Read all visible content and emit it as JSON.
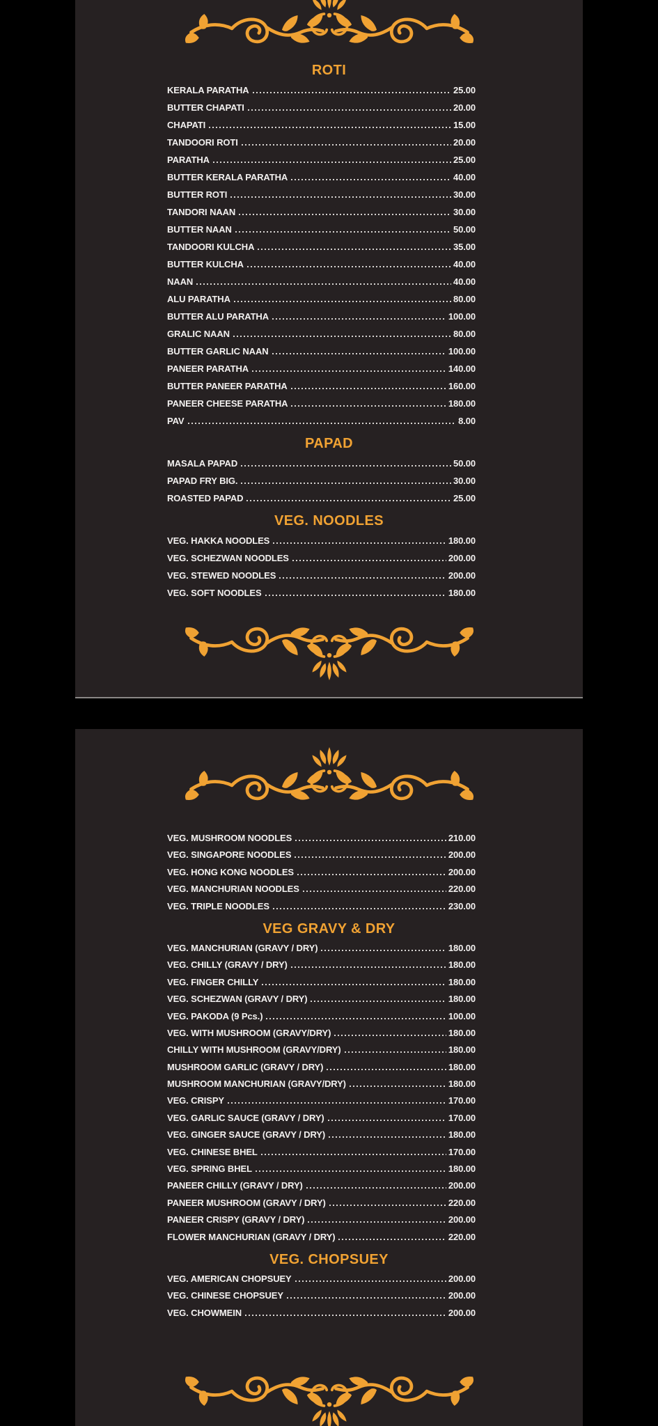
{
  "theme": {
    "orange": "#f0a233",
    "page_bg": "#262122",
    "canvas_bg": "#000000",
    "text": "#f3f1f0",
    "dots": "#d8d5d3"
  },
  "ornament": "floral-flourish-divider",
  "pages": [
    {
      "name": "menu-page-1",
      "sections": [
        {
          "title": "ROTI",
          "items": [
            {
              "name": "KERALA PARATHA",
              "price": "25.00"
            },
            {
              "name": "BUTTER CHAPATI",
              "price": "20.00"
            },
            {
              "name": "CHAPATI",
              "price": "15.00"
            },
            {
              "name": "TANDOORI ROTI",
              "price": "20.00"
            },
            {
              "name": "PARATHA",
              "price": "25.00"
            },
            {
              "name": "BUTTER KERALA PARATHA",
              "price": "40.00"
            },
            {
              "name": "BUTTER ROTI",
              "price": "30.00"
            },
            {
              "name": "TANDORI NAAN",
              "price": "30.00"
            },
            {
              "name": "BUTTER NAAN",
              "price": "50.00"
            },
            {
              "name": "TANDOORI KULCHA",
              "price": "35.00"
            },
            {
              "name": "BUTTER KULCHA",
              "price": "40.00"
            },
            {
              "name": "NAAN",
              "price": "40.00"
            },
            {
              "name": "ALU PARATHA",
              "price": "80.00"
            },
            {
              "name": "BUTTER ALU PARATHA",
              "price": "100.00"
            },
            {
              "name": "GRALIC NAAN",
              "price": "80.00"
            },
            {
              "name": "BUTTER GARLIC NAAN",
              "price": "100.00"
            },
            {
              "name": "PANEER PARATHA",
              "price": "140.00"
            },
            {
              "name": "BUTTER PANEER PARATHA",
              "price": "160.00"
            },
            {
              "name": "PANEER CHEESE PARATHA",
              "price": "180.00"
            },
            {
              "name": "PAV",
              "price": "8.00"
            }
          ]
        },
        {
          "title": "PAPAD",
          "items": [
            {
              "name": "MASALA PAPAD",
              "price": "50.00"
            },
            {
              "name": "PAPAD FRY BIG.",
              "price": "30.00"
            },
            {
              "name": "ROASTED PAPAD",
              "price": "25.00"
            }
          ]
        },
        {
          "title": "VEG. NOODLES",
          "items": [
            {
              "name": "VEG. HAKKA NOODLES",
              "price": "180.00"
            },
            {
              "name": "VEG. SCHEZWAN NOODLES",
              "price": "200.00"
            },
            {
              "name": "VEG. STEWED NOODLES",
              "price": "200.00"
            },
            {
              "name": "VEG. SOFT NOODLES",
              "price": "180.00"
            }
          ]
        }
      ]
    },
    {
      "name": "menu-page-2",
      "sections": [
        {
          "title": null,
          "items": [
            {
              "name": "VEG. MUSHROOM NOODLES",
              "price": "210.00"
            },
            {
              "name": "VEG. SINGAPORE NOODLES",
              "price": "200.00"
            },
            {
              "name": "VEG. HONG KONG NOODLES",
              "price": "200.00"
            },
            {
              "name": "VEG. MANCHURIAN NOODLES",
              "price": "220.00"
            },
            {
              "name": "VEG. TRIPLE NOODLES",
              "price": "230.00"
            }
          ]
        },
        {
          "title": "VEG GRAVY & DRY",
          "items": [
            {
              "name": "VEG. MANCHURIAN (GRAVY / DRY)",
              "price": "180.00"
            },
            {
              "name": "VEG. CHILLY (GRAVY / DRY)",
              "price": "180.00"
            },
            {
              "name": "VEG. FINGER CHILLY",
              "price": "180.00"
            },
            {
              "name": "VEG. SCHEZWAN (GRAVY / DRY)",
              "price": "180.00"
            },
            {
              "name": "VEG. PAKODA (9 Pcs.)",
              "price": "100.00"
            },
            {
              "name": "VEG. WITH MUSHROOM (GRAVY/DRY)",
              "price": "180.00"
            },
            {
              "name": "CHILLY WITH MUSHROOM (GRAVY/DRY)",
              "price": "180.00"
            },
            {
              "name": "MUSHROOM GARLIC (GRAVY / DRY)",
              "price": "180.00"
            },
            {
              "name": "MUSHROOM MANCHURIAN (GRAVY/DRY)",
              "price": "180.00"
            },
            {
              "name": "VEG. CRISPY",
              "price": "170.00"
            },
            {
              "name": "VEG. GARLIC SAUCE (GRAVY / DRY)",
              "price": "170.00"
            },
            {
              "name": "VEG. GINGER SAUCE (GRAVY / DRY)",
              "price": "180.00"
            },
            {
              "name": "VEG. CHINESE BHEL",
              "price": "170.00"
            },
            {
              "name": "VEG. SPRING BHEL",
              "price": "180.00"
            },
            {
              "name": "PANEER CHILLY (GRAVY / DRY)",
              "price": "200.00"
            },
            {
              "name": "PANEER MUSHROOM (GRAVY / DRY)",
              "price": "220.00"
            },
            {
              "name": "PANEER CRISPY (GRAVY / DRY)",
              "price": "200.00"
            },
            {
              "name": "FLOWER MANCHURIAN (GRAVY / DRY)",
              "price": "220.00"
            }
          ]
        },
        {
          "title": "VEG. CHOPSUEY",
          "items": [
            {
              "name": "VEG. AMERICAN CHOPSUEY",
              "price": "200.00"
            },
            {
              "name": "VEG. CHINESE CHOPSUEY",
              "price": "200.00"
            },
            {
              "name": "VEG. CHOWMEIN",
              "price": "200.00"
            }
          ]
        }
      ]
    }
  ]
}
